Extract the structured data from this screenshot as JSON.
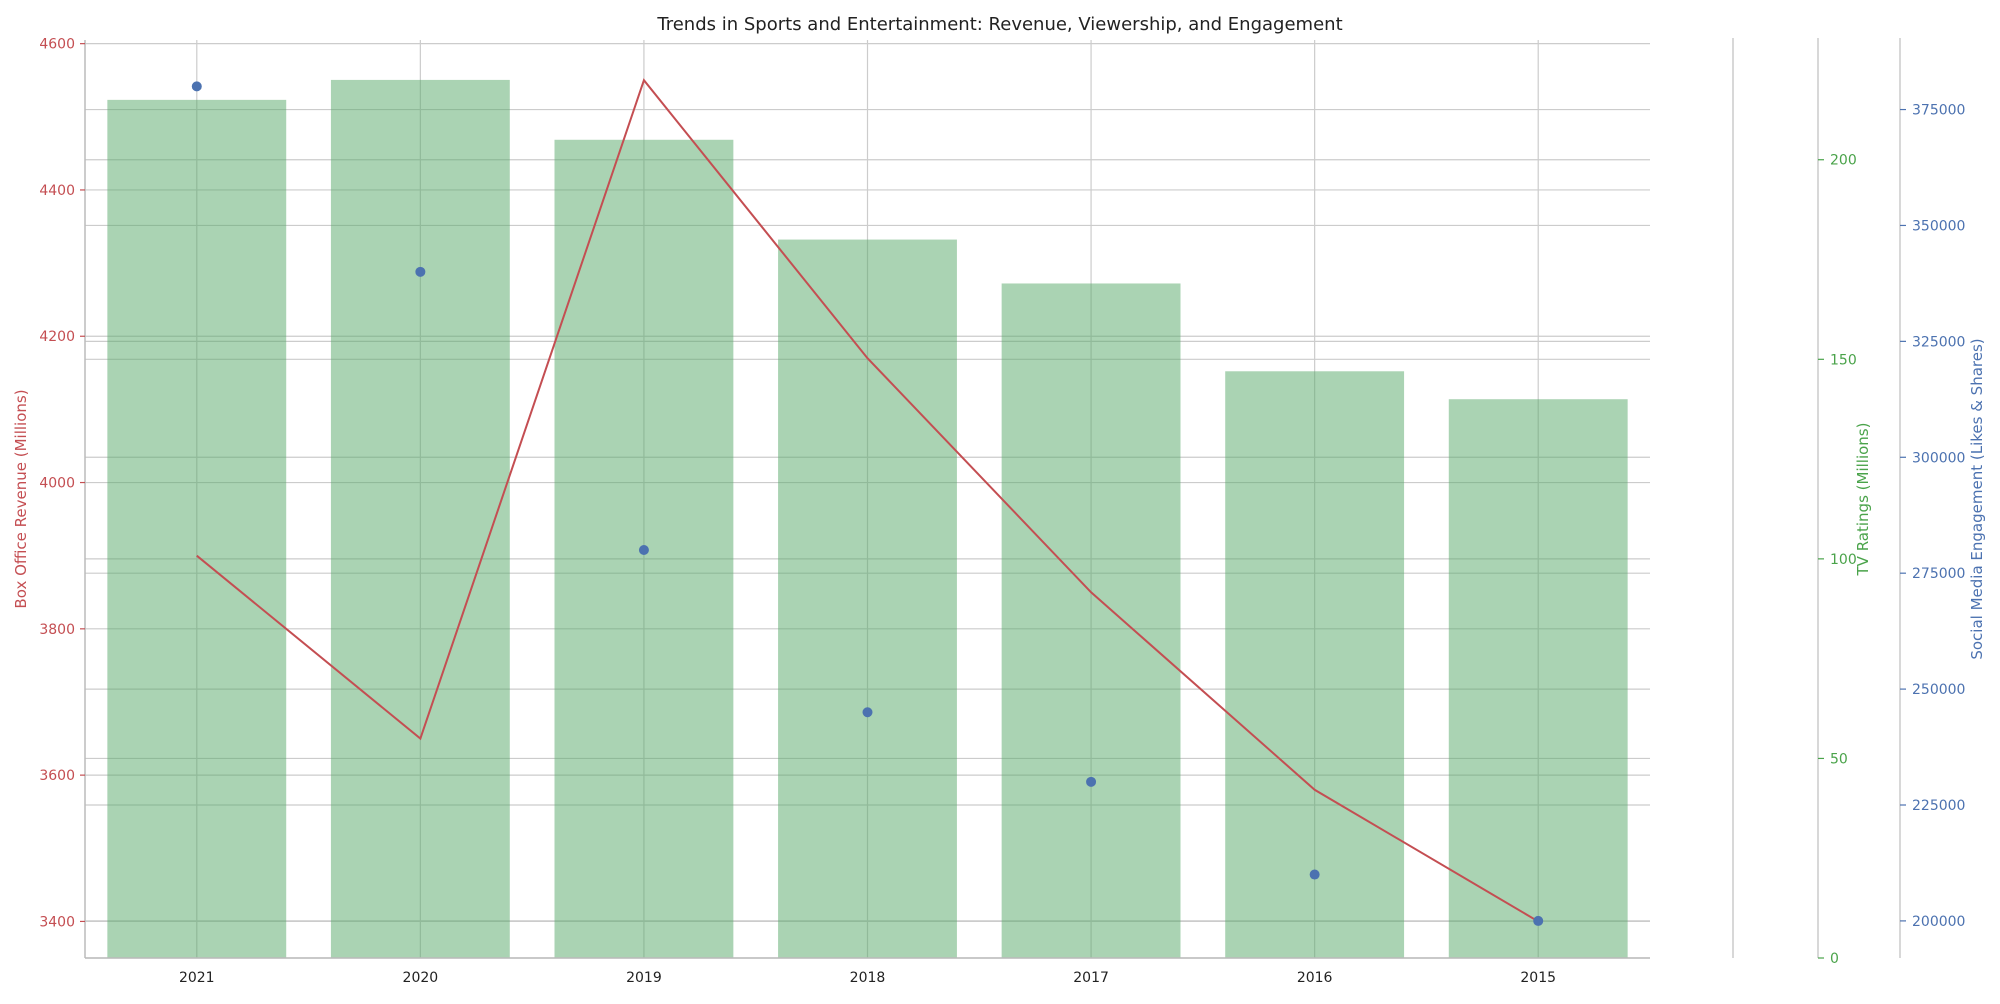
{
  "chart_data": {
    "type": "bar",
    "title": "Trends in Sports and Entertainment: Revenue, Viewership, and Engagement",
    "categories": [
      "2021",
      "2020",
      "2019",
      "2018",
      "2017",
      "2016",
      "2015"
    ],
    "series": [
      {
        "name": "TV Ratings (Millions)",
        "kind": "bar",
        "axis": "right-green",
        "color": "#55a868",
        "values": [
          215,
          220,
          205,
          180,
          169,
          147,
          140
        ]
      },
      {
        "name": "Box Office Revenue (Millions)",
        "kind": "line",
        "axis": "left-red",
        "color": "#c44e52",
        "values": [
          3900,
          3650,
          4550,
          4170,
          3850,
          3580,
          3400
        ]
      },
      {
        "name": "Social Media Engagement (Likes & Shares)",
        "kind": "scatter",
        "axis": "right-blue",
        "color": "#4c72b0",
        "values": [
          380000,
          340000,
          280000,
          245000,
          230000,
          210000,
          200000
        ]
      }
    ],
    "axes": {
      "left": {
        "label": "Box Office Revenue (Millions)",
        "color": "#c44e52",
        "ylim": [
          3350,
          4605
        ],
        "ticks": [
          3400,
          3600,
          3800,
          4000,
          4200,
          4400,
          4600
        ]
      },
      "right_green": {
        "label": "TV Ratings (Millions)",
        "color": "#4aa34a",
        "ylim": [
          0,
          230
        ],
        "ticks": [
          0,
          50,
          100,
          150,
          200
        ]
      },
      "right_blue": {
        "label": "Social Media Engagement (Likes & Shares)",
        "color": "#4c72b0",
        "ylim": [
          192000,
          390000
        ],
        "ticks": [
          200000,
          225000,
          250000,
          275000,
          300000,
          325000,
          350000,
          375000
        ]
      }
    },
    "grid": true
  }
}
